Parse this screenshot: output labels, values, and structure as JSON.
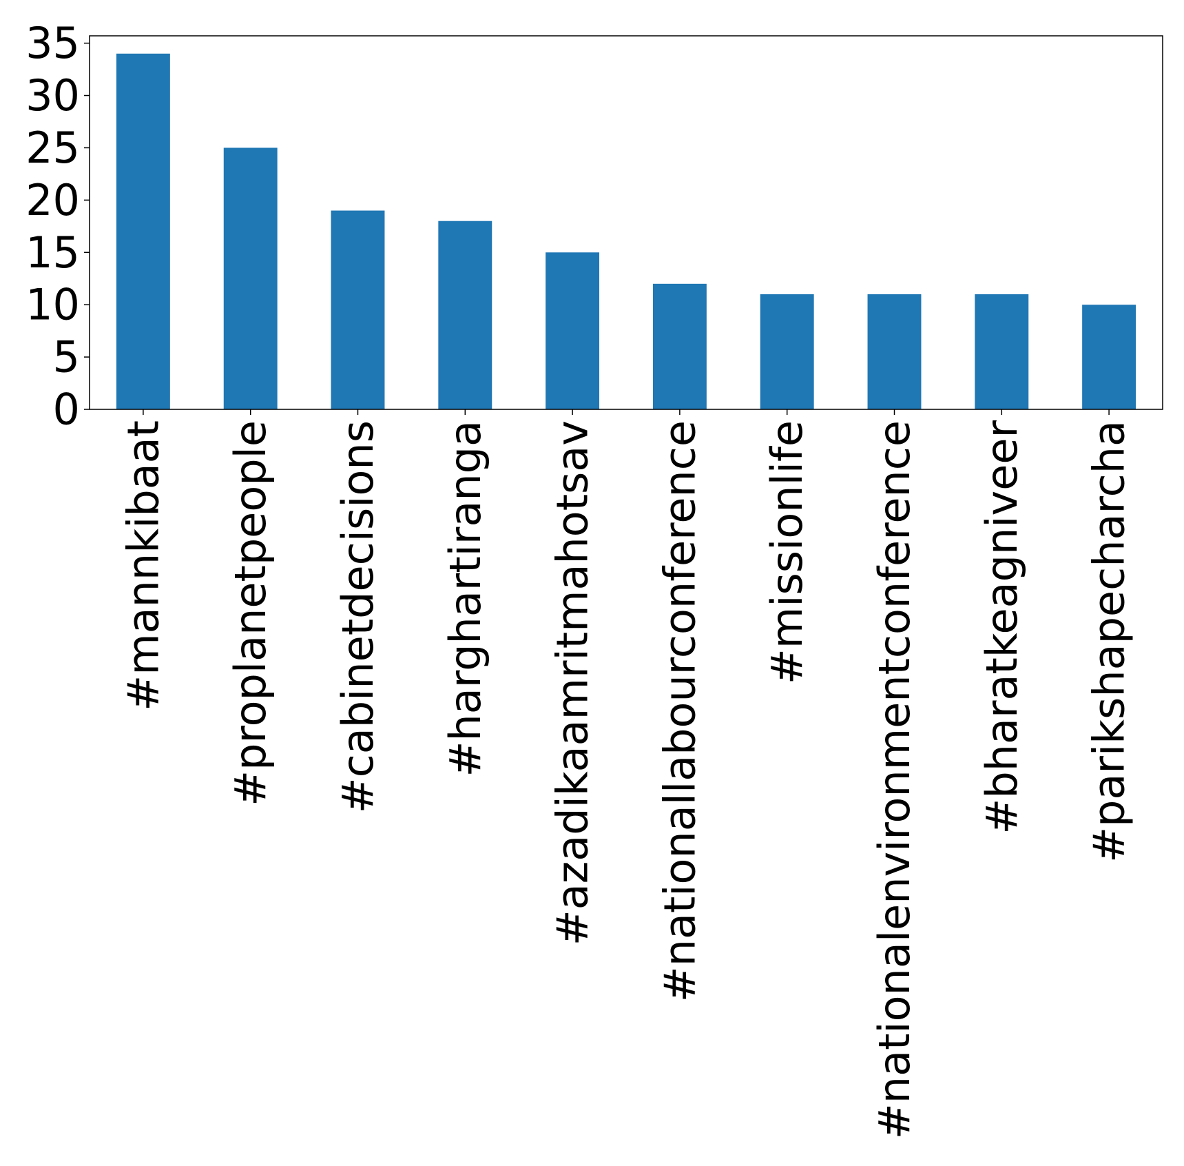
{
  "chart_data": {
    "type": "bar",
    "title": "",
    "xlabel": "",
    "ylabel": "",
    "categories": [
      "#mannkibaat",
      "#proplanetpeople",
      "#cabinetdecisions",
      "#harghartiranga",
      "#azadikaamritmahotsav",
      "#nationallabourconference",
      "#missionlife",
      "#nationalenvironmentconference",
      "#bharatkeagniveer",
      "#parikshapecharcha"
    ],
    "values": [
      34,
      25,
      19,
      18,
      15,
      12,
      11,
      11,
      11,
      10
    ],
    "ylim": [
      0,
      35.7
    ],
    "yticks": [
      0,
      5,
      10,
      15,
      20,
      25,
      30,
      35
    ],
    "bar_color": "#1f77b4",
    "grid": false,
    "legend": "none"
  }
}
